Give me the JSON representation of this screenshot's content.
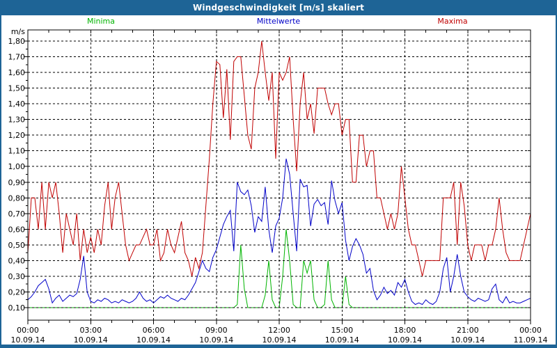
{
  "window": {
    "title": "Windgeschwindigkeit [m/s] skaliert"
  },
  "colors": {
    "frame": "#1E6496",
    "title_text": "#FFFFFF",
    "background": "#FFFFFF",
    "grid": "#000000",
    "minima": "#00B400",
    "mittelwerte": "#0000C8",
    "maxima": "#C00000"
  },
  "legend": [
    {
      "key": "minima",
      "label": "Minima",
      "color": "#00B400"
    },
    {
      "key": "mittelwerte",
      "label": "Mittelwerte",
      "color": "#0000C8"
    },
    {
      "key": "maxima",
      "label": "Maxima",
      "color": "#C00000"
    }
  ],
  "axis": {
    "unit_label": "m/s",
    "y_ticks": [
      {
        "value": 1.8,
        "label": "1,80"
      },
      {
        "value": 1.7,
        "label": "1,70"
      },
      {
        "value": 1.6,
        "label": "1,60"
      },
      {
        "value": 1.5,
        "label": "1,50"
      },
      {
        "value": 1.4,
        "label": "1,40"
      },
      {
        "value": 1.3,
        "label": "1,30"
      },
      {
        "value": 1.2,
        "label": "1,20"
      },
      {
        "value": 1.1,
        "label": "1,10"
      },
      {
        "value": 1.0,
        "label": "1,00"
      },
      {
        "value": 0.9,
        "label": "0,90"
      },
      {
        "value": 0.8,
        "label": "0,80"
      },
      {
        "value": 0.7,
        "label": "0,70"
      },
      {
        "value": 0.6,
        "label": "0,60"
      },
      {
        "value": 0.5,
        "label": "0,50"
      },
      {
        "value": 0.4,
        "label": "0,40"
      },
      {
        "value": 0.3,
        "label": "0,30"
      },
      {
        "value": 0.2,
        "label": "0,20"
      },
      {
        "value": 0.1,
        "label": "0,10"
      }
    ],
    "x_ticks": [
      {
        "hour": 0,
        "time": "00:00",
        "date": "10.09.14"
      },
      {
        "hour": 3,
        "time": "03:00",
        "date": "10.09.14"
      },
      {
        "hour": 6,
        "time": "06:00",
        "date": "10.09.14"
      },
      {
        "hour": 9,
        "time": "09:00",
        "date": "10.09.14"
      },
      {
        "hour": 12,
        "time": "12:00",
        "date": "10.09.14"
      },
      {
        "hour": 15,
        "time": "15:00",
        "date": "10.09.14"
      },
      {
        "hour": 18,
        "time": "18:00",
        "date": "10.09.14"
      },
      {
        "hour": 21,
        "time": "21:00",
        "date": "10.09.14"
      },
      {
        "hour": 24,
        "time": "00:00",
        "date": "11.09.14"
      }
    ]
  },
  "chart_data": {
    "type": "line",
    "title": "Windgeschwindigkeit [m/s] skaliert",
    "ylabel": "m/s",
    "xlabel": "",
    "x_unit": "hours",
    "x_range_hours": [
      0,
      24
    ],
    "x_interval_minutes": 10,
    "ylim": [
      0.02,
      1.87
    ],
    "y_gridline_step": 0.1,
    "y_gridline_range": [
      0.1,
      1.8
    ],
    "grid": "dashed-black",
    "legend_position": "top",
    "series": [
      {
        "name": "Minima",
        "color": "#00B400",
        "values": [
          0.1,
          0.1,
          0.1,
          0.1,
          0.1,
          0.1,
          0.1,
          0.1,
          0.1,
          0.1,
          0.1,
          0.1,
          0.1,
          0.1,
          0.1,
          0.1,
          0.1,
          0.1,
          0.1,
          0.1,
          0.1,
          0.1,
          0.1,
          0.1,
          0.1,
          0.1,
          0.1,
          0.1,
          0.1,
          0.1,
          0.1,
          0.1,
          0.1,
          0.1,
          0.1,
          0.1,
          0.1,
          0.1,
          0.1,
          0.1,
          0.1,
          0.1,
          0.1,
          0.1,
          0.1,
          0.1,
          0.1,
          0.1,
          0.1,
          0.1,
          0.1,
          0.1,
          0.1,
          0.1,
          0.1,
          0.1,
          0.1,
          0.1,
          0.1,
          0.1,
          0.12,
          0.5,
          0.22,
          0.1,
          0.1,
          0.1,
          0.1,
          0.1,
          0.18,
          0.4,
          0.15,
          0.1,
          0.1,
          0.3,
          0.6,
          0.4,
          0.12,
          0.1,
          0.1,
          0.4,
          0.32,
          0.4,
          0.15,
          0.1,
          0.1,
          0.12,
          0.4,
          0.15,
          0.1,
          0.1,
          0.1,
          0.3,
          0.12,
          0.1,
          0.1,
          0.1,
          0.1,
          0.1,
          0.1,
          0.1,
          0.1,
          0.1,
          0.1,
          0.1,
          0.1,
          0.1,
          0.1,
          0.1,
          0.1,
          0.1,
          0.1,
          0.1,
          0.1,
          0.1,
          0.1,
          0.1,
          0.1,
          0.1,
          0.1,
          0.1,
          0.1,
          0.1,
          0.1,
          0.1,
          0.1,
          0.1,
          0.1,
          0.1,
          0.1,
          0.1,
          0.1,
          0.1,
          0.1,
          0.1,
          0.1,
          0.1,
          0.1,
          0.1,
          0.1,
          0.1,
          0.1,
          0.1,
          0.1,
          0.1,
          0.1
        ]
      },
      {
        "name": "Mittelwerte",
        "color": "#0000C8",
        "values": [
          0.15,
          0.17,
          0.2,
          0.24,
          0.26,
          0.28,
          0.22,
          0.13,
          0.16,
          0.18,
          0.14,
          0.16,
          0.18,
          0.17,
          0.19,
          0.28,
          0.43,
          0.2,
          0.14,
          0.13,
          0.15,
          0.14,
          0.16,
          0.15,
          0.13,
          0.14,
          0.13,
          0.15,
          0.14,
          0.13,
          0.14,
          0.16,
          0.2,
          0.16,
          0.14,
          0.15,
          0.13,
          0.15,
          0.17,
          0.16,
          0.18,
          0.16,
          0.15,
          0.14,
          0.16,
          0.15,
          0.18,
          0.22,
          0.26,
          0.33,
          0.4,
          0.35,
          0.33,
          0.42,
          0.47,
          0.55,
          0.63,
          0.68,
          0.72,
          0.46,
          0.9,
          0.84,
          0.82,
          0.85,
          0.75,
          0.58,
          0.68,
          0.65,
          0.87,
          0.6,
          0.45,
          0.62,
          0.67,
          0.8,
          1.05,
          0.95,
          0.7,
          0.46,
          0.92,
          0.87,
          0.88,
          0.62,
          0.76,
          0.79,
          0.75,
          0.77,
          0.63,
          0.91,
          0.78,
          0.7,
          0.77,
          0.53,
          0.4,
          0.49,
          0.54,
          0.5,
          0.44,
          0.32,
          0.35,
          0.21,
          0.15,
          0.18,
          0.23,
          0.19,
          0.21,
          0.18,
          0.26,
          0.23,
          0.28,
          0.2,
          0.14,
          0.12,
          0.13,
          0.12,
          0.15,
          0.13,
          0.12,
          0.14,
          0.2,
          0.35,
          0.42,
          0.2,
          0.3,
          0.44,
          0.3,
          0.2,
          0.17,
          0.15,
          0.14,
          0.16,
          0.15,
          0.14,
          0.15,
          0.22,
          0.25,
          0.15,
          0.13,
          0.17,
          0.13,
          0.14,
          0.13,
          0.13,
          0.14,
          0.15,
          0.16
        ]
      },
      {
        "name": "Maxima",
        "color": "#C00000",
        "values": [
          0.45,
          0.8,
          0.8,
          0.6,
          0.9,
          0.6,
          0.9,
          0.8,
          0.9,
          0.7,
          0.45,
          0.7,
          0.6,
          0.5,
          0.7,
          0.4,
          0.6,
          0.45,
          0.55,
          0.45,
          0.6,
          0.5,
          0.75,
          0.9,
          0.6,
          0.8,
          0.9,
          0.7,
          0.5,
          0.4,
          0.45,
          0.5,
          0.5,
          0.55,
          0.6,
          0.5,
          0.5,
          0.6,
          0.4,
          0.45,
          0.6,
          0.5,
          0.45,
          0.55,
          0.65,
          0.45,
          0.4,
          0.3,
          0.42,
          0.35,
          0.45,
          0.75,
          1.05,
          1.4,
          1.67,
          1.65,
          1.31,
          1.62,
          1.17,
          1.67,
          1.7,
          1.7,
          1.45,
          1.2,
          1.11,
          1.5,
          1.6,
          1.8,
          1.6,
          1.42,
          1.6,
          1.05,
          1.6,
          1.55,
          1.6,
          1.7,
          1.3,
          0.97,
          1.4,
          1.6,
          1.3,
          1.4,
          1.21,
          1.5,
          1.5,
          1.5,
          1.4,
          1.33,
          1.4,
          1.4,
          1.2,
          1.3,
          1.3,
          0.9,
          0.9,
          1.2,
          1.2,
          1.0,
          1.1,
          1.1,
          0.8,
          0.8,
          0.7,
          0.6,
          0.7,
          0.6,
          0.7,
          1.0,
          0.8,
          0.6,
          0.5,
          0.5,
          0.4,
          0.3,
          0.4,
          0.4,
          0.4,
          0.4,
          0.4,
          0.8,
          0.8,
          0.8,
          0.9,
          0.5,
          0.9,
          0.75,
          0.5,
          0.4,
          0.5,
          0.5,
          0.5,
          0.4,
          0.5,
          0.5,
          0.6,
          0.8,
          0.6,
          0.45,
          0.4,
          0.4,
          0.4,
          0.4,
          0.5,
          0.6,
          0.7
        ]
      }
    ]
  }
}
